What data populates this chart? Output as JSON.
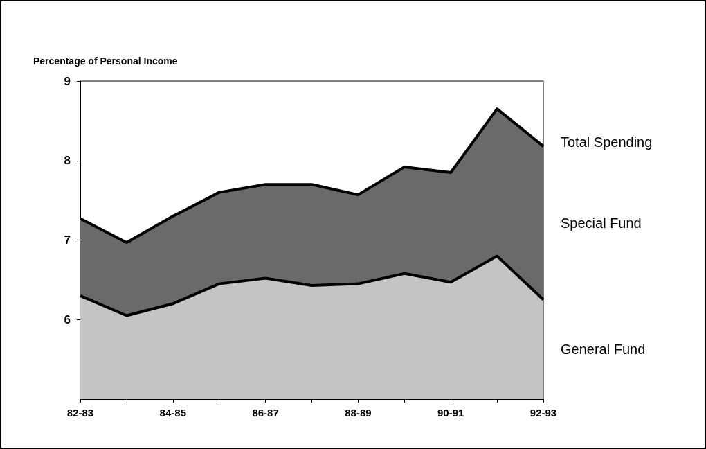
{
  "chart_data": {
    "type": "area",
    "ylabel": "Percentage of Personal Income",
    "categories": [
      "82-83",
      null,
      "84-85",
      null,
      "86-87",
      null,
      "88-89",
      null,
      "90-91",
      null,
      "92-93"
    ],
    "series": [
      {
        "name": "Total Spending",
        "color": "#6a6a6a",
        "values": [
          7.27,
          6.97,
          7.3,
          7.6,
          7.7,
          7.7,
          7.57,
          7.92,
          7.85,
          8.65,
          8.18
        ]
      },
      {
        "name": "General Fund",
        "color": "#c4c4c4",
        "values": [
          6.3,
          6.05,
          6.2,
          6.45,
          6.52,
          6.43,
          6.45,
          6.58,
          6.47,
          6.8,
          6.25
        ]
      }
    ],
    "annotations": [
      "Special Fund"
    ],
    "ylim": [
      5,
      9
    ],
    "yticks": [
      6,
      7,
      8,
      9
    ],
    "grid": false,
    "legend": false,
    "marker": "none",
    "line_style": "solid"
  }
}
